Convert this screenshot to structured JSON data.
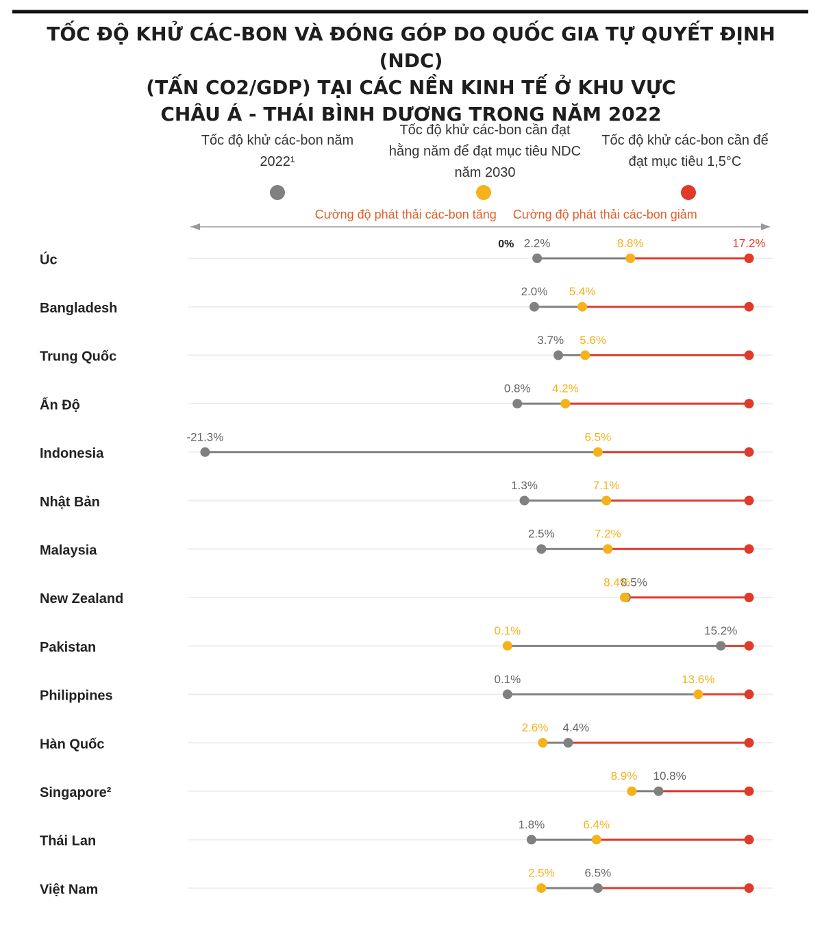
{
  "chart_data": {
    "type": "dumbbell",
    "title": "TỐC ĐỘ KHỬ CÁC-BON VÀ ĐÓNG GÓP DO QUỐC GIA TỰ QUYẾT ĐỊNH (NDC)\n(TẤN CO2/GDP) TẠI CÁC NỀN KINH TẾ Ở KHU VỰC\nCHÂU Á - THÁI BÌNH DƯƠNG TRONG NĂM 2022",
    "annotations": [
      "Cường độ phát thải các-bon tăng",
      "Cường độ phát thải các-bon giảm"
    ],
    "categories": [
      "Úc",
      "Bangladesh",
      "Trung Quốc",
      "Ấn Độ",
      "Indonesia",
      "Nhật Bản",
      "Malaysia",
      "New Zealand",
      "Pakistan",
      "Philippines",
      "Hàn Quốc",
      "Singapore²",
      "Thái Lan",
      "Việt Nam"
    ],
    "series": [
      {
        "name": "Tốc độ khử các-bon năm 2022¹",
        "color": "#808080",
        "values": [
          2.2,
          2.0,
          3.7,
          0.8,
          -21.3,
          1.3,
          2.5,
          8.5,
          15.2,
          0.1,
          4.4,
          10.8,
          1.8,
          6.5
        ],
        "value_labels": [
          "2.2%",
          "2.0%",
          "3.7%",
          "0.8%",
          "-21.3%",
          "1.3%",
          "2.5%",
          "8.5%",
          "15.2%",
          "0.1%",
          "4.4%",
          "10.8%",
          "1.8%",
          "6.5%"
        ]
      },
      {
        "name": "Tốc độ khử các-bon cần đạt hằng năm để đạt mục tiêu NDC năm 2030",
        "color": "#f5b21b",
        "values": [
          8.8,
          5.4,
          5.6,
          4.2,
          6.5,
          7.1,
          7.2,
          8.4,
          0.1,
          13.6,
          2.6,
          8.9,
          6.4,
          2.5
        ],
        "value_labels": [
          "8.8%",
          "5.4%",
          "5.6%",
          "4.2%",
          "6.5%",
          "7.1%",
          "7.2%",
          "8.4%",
          "0.1%",
          "13.6%",
          "2.6%",
          "8.9%",
          "6.4%",
          "2.5%"
        ]
      },
      {
        "name": "Tốc độ khử các-bon cần để đạt mục tiêu 1,5°C",
        "color": "#e03a2a",
        "values": [
          17.2,
          17.2,
          17.2,
          17.2,
          17.2,
          17.2,
          17.2,
          17.2,
          17.2,
          17.2,
          17.2,
          17.2,
          17.2,
          17.2
        ],
        "value_labels": [
          "17.2%",
          null,
          null,
          null,
          null,
          null,
          null,
          null,
          null,
          null,
          null,
          null,
          null,
          null
        ]
      }
    ],
    "xlim": [
      -22,
      18
    ],
    "xticks": [
      {
        "value": 0,
        "label": "0%"
      }
    ]
  }
}
